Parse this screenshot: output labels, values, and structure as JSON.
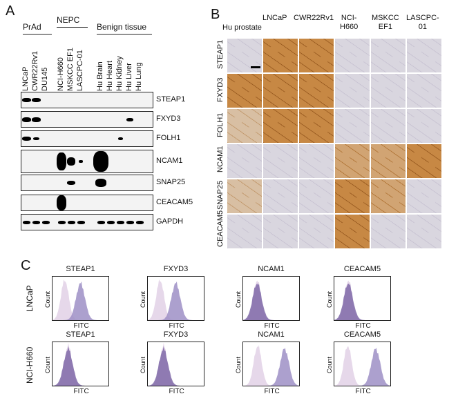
{
  "panel_a": {
    "letter": "A",
    "group_labels": {
      "prad": "PrAd",
      "nepc": "NEPC",
      "benign": "Benign tissue"
    },
    "lanes": [
      "LNCaP",
      "CWR22Rv1",
      "DU145",
      "NCI-H660",
      "MSKCC EF1",
      "LASCPC-01",
      "Hu Brain",
      "Hu Heart",
      "Hu Kidney",
      "Hu Liver",
      "Hu Lung"
    ],
    "blots": [
      "STEAP1",
      "FXYD3",
      "FOLH1",
      "NCAM1",
      "SNAP25",
      "CEACAM5",
      "GAPDH"
    ]
  },
  "panel_b": {
    "letter": "B",
    "columns": [
      "Hu prostate",
      "LNCaP",
      "CWR22Rv1",
      "NCI-\nH660",
      "MSKCC\nEF1",
      "LASCPC-\n01"
    ],
    "rows": [
      "STEAP1",
      "FXYD3",
      "FOLH1",
      "NCAM1",
      "SNAP25",
      "CEACAM5"
    ]
  },
  "panel_c": {
    "letter": "C",
    "row_labels": [
      "LNCaP",
      "NCI-H660"
    ],
    "markers": [
      "STEAP1",
      "FXYD3",
      "NCAM1",
      "CEACAM5"
    ],
    "x_label": "FITC",
    "y_label": "Count"
  },
  "colors": {
    "control": "#e6d8ea",
    "stain": "#9d8fc6",
    "overlap": "#7f6aa8",
    "dab": "#b77a3b"
  }
}
